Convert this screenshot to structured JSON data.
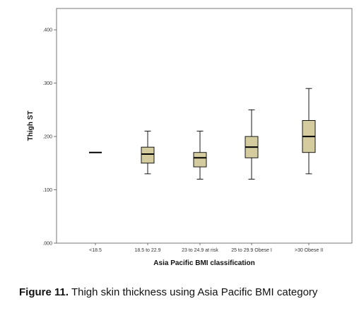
{
  "chart_data": {
    "type": "boxplot",
    "xlabel": "Asia Pacific BMI classification",
    "ylabel": "Thigh ST",
    "ylim": [
      0.0,
      0.44
    ],
    "yticks": [
      {
        "value": 0.0,
        "label": ".000"
      },
      {
        "value": 0.1,
        "label": ".100"
      },
      {
        "value": 0.2,
        "label": ".200"
      },
      {
        "value": 0.3,
        "label": ".300"
      },
      {
        "value": 0.4,
        "label": ".400"
      }
    ],
    "categories": [
      "<18.5",
      "18.5 to 22.9",
      "23 to 24.9 at risk",
      "25 to 29.9 Obese I",
      ">30 Obese II"
    ],
    "boxes": [
      {
        "min": 0.17,
        "q1": 0.17,
        "median": 0.17,
        "q3": 0.17,
        "max": 0.17
      },
      {
        "min": 0.13,
        "q1": 0.15,
        "median": 0.167,
        "q3": 0.18,
        "max": 0.21
      },
      {
        "min": 0.12,
        "q1": 0.143,
        "median": 0.16,
        "q3": 0.17,
        "max": 0.21
      },
      {
        "min": 0.12,
        "q1": 0.16,
        "median": 0.18,
        "q3": 0.2,
        "max": 0.25
      },
      {
        "min": 0.13,
        "q1": 0.17,
        "median": 0.2,
        "q3": 0.23,
        "max": 0.29
      }
    ],
    "box_color": "#d4cc9e",
    "grid": false
  },
  "caption": {
    "label": "Figure 11.",
    "text": "Thigh skin thickness using Asia Pacific BMI category"
  }
}
